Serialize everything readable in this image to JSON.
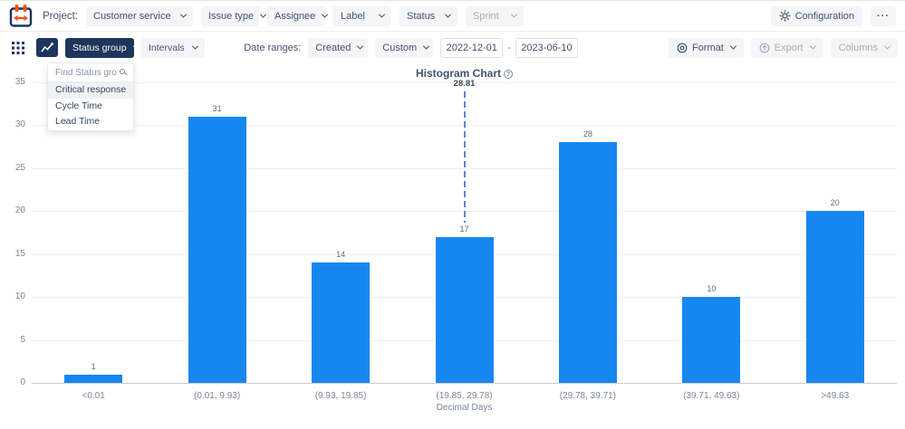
{
  "toolbar": {
    "project_label": "Project:",
    "project_value": "Customer service",
    "filters": [
      {
        "label": "Issue type",
        "disabled": false
      },
      {
        "label": "Assignee",
        "disabled": false
      },
      {
        "label": "Label",
        "disabled": false
      },
      {
        "label": "Status",
        "disabled": false
      },
      {
        "label": "Sprint",
        "disabled": true
      }
    ],
    "configuration_label": "Configuration",
    "more_label": "···"
  },
  "controls": {
    "status_group_label": "Status group",
    "intervals_label": "Intervals",
    "date_ranges_label": "Date ranges:",
    "date_field_value": "Created",
    "date_mode_value": "Custom",
    "date_from": "2022-12-01",
    "date_separator": "-",
    "date_to": "2023-06-10",
    "format_label": "Format",
    "export_label": "Export",
    "columns_label": "Columns"
  },
  "status_group_menu": {
    "search_placeholder": "Find Status group",
    "items": [
      "Critical response",
      "Cycle Time",
      "Lead Time"
    ],
    "highlighted_item": "Critical response"
  },
  "chart_data": {
    "type": "bar",
    "title": "Histogram Chart",
    "categories": [
      "<0.01",
      "(0.01, 9.93)",
      "(9.93, 19.85)",
      "(19.85, 29.78)",
      "(29.78, 39.71)",
      "(39.71, 49.63)",
      ">49.63"
    ],
    "values": [
      1,
      31,
      14,
      17,
      28,
      10,
      20
    ],
    "xlabel": "Decimal Days",
    "ylim": [
      0,
      35
    ],
    "ytick_step": 5,
    "grid": true,
    "legend": false,
    "bar_color": "#1787f0",
    "annotation": {
      "label": "28.81",
      "value": 28.81,
      "category_index": 3,
      "color": "#5b85d7"
    }
  },
  "colors": {
    "navy": "#1e355c",
    "bar_blue": "#1787f0",
    "dashed_blue": "#5b85d7",
    "field_bg": "#f4f5f7",
    "text": "#42526e",
    "muted": "#a5adba"
  }
}
